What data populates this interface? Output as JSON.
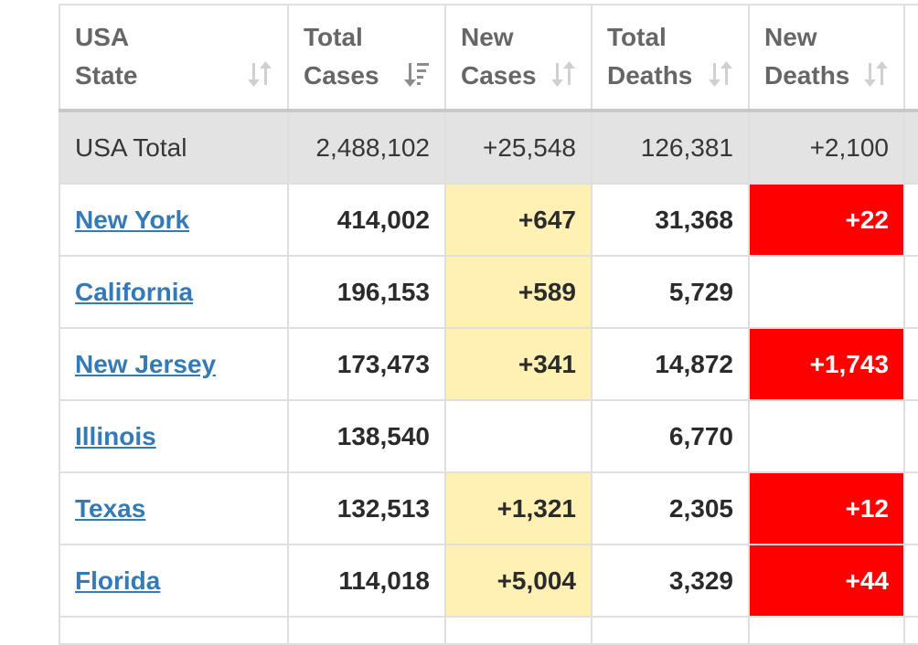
{
  "table": {
    "headers": [
      {
        "line1": "USA",
        "line2": "State",
        "sort": "both"
      },
      {
        "line1": "Total",
        "line2": "Cases",
        "sort": "desc-active"
      },
      {
        "line1": "New",
        "line2": "Cases",
        "sort": "both"
      },
      {
        "line1": "Total",
        "line2": "Deaths",
        "sort": "both"
      },
      {
        "line1": "New",
        "line2": "Deaths",
        "sort": "both"
      }
    ],
    "total_row": {
      "label": "USA Total",
      "total_cases": "2,488,102",
      "new_cases": "+25,548",
      "total_deaths": "126,381",
      "new_deaths": "+2,100"
    },
    "rows": [
      {
        "state": "New York",
        "total_cases": "414,002",
        "new_cases": "+647",
        "total_deaths": "31,368",
        "new_deaths": "+22"
      },
      {
        "state": "California",
        "total_cases": "196,153",
        "new_cases": "+589",
        "total_deaths": "5,729",
        "new_deaths": ""
      },
      {
        "state": "New Jersey",
        "total_cases": "173,473",
        "new_cases": "+341",
        "total_deaths": "14,872",
        "new_deaths": "+1,743"
      },
      {
        "state": "Illinois",
        "total_cases": "138,540",
        "new_cases": "",
        "total_deaths": "6,770",
        "new_deaths": ""
      },
      {
        "state": "Texas",
        "total_cases": "132,513",
        "new_cases": "+1,321",
        "total_deaths": "2,305",
        "new_deaths": "+12"
      },
      {
        "state": "Florida",
        "total_cases": "114,018",
        "new_cases": "+5,004",
        "total_deaths": "3,329",
        "new_deaths": "+44"
      }
    ]
  },
  "colors": {
    "new_cases_highlight": "#fff0b4",
    "new_deaths_highlight": "#ff0000",
    "link": "#337ab7",
    "total_row_bg": "#e3e3e3"
  }
}
